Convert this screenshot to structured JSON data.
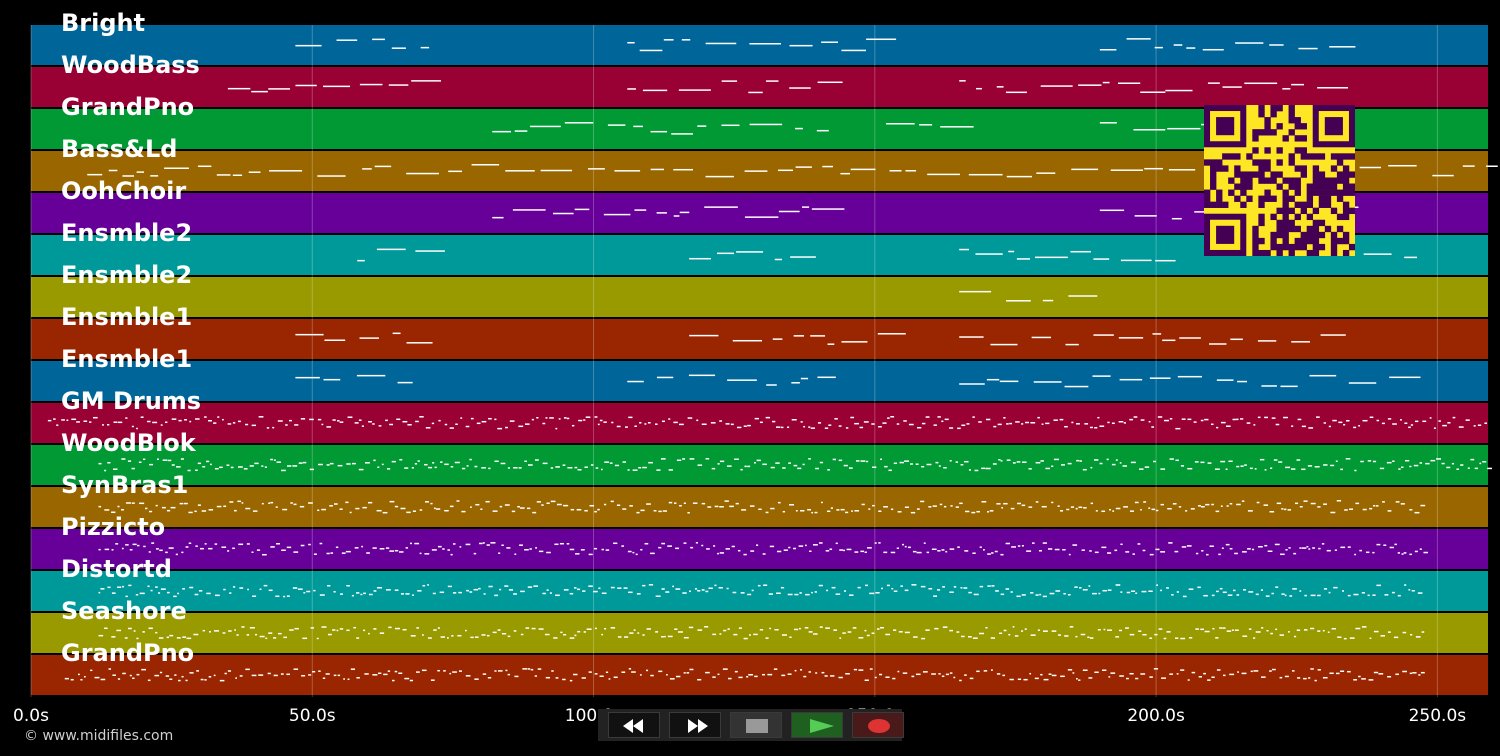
{
  "tracks": [
    {
      "name": "Bright",
      "color": "#006699"
    },
    {
      "name": "WoodBass",
      "color": "#990033"
    },
    {
      "name": "GrandPno",
      "color": "#009933"
    },
    {
      "name": "Bass&Ld",
      "color": "#996600"
    },
    {
      "name": "OohChoir",
      "color": "#660099"
    },
    {
      "name": "Ensmble2",
      "color": "#009999"
    },
    {
      "name": "Ensmble2",
      "color": "#999900"
    },
    {
      "name": "Ensmble1",
      "color": "#992600"
    },
    {
      "name": "Ensmble1",
      "color": "#006699"
    },
    {
      "name": "GM Drums",
      "color": "#990033"
    },
    {
      "name": "WoodBlok",
      "color": "#009933"
    },
    {
      "name": "SynBras1",
      "color": "#996600"
    },
    {
      "name": "Pizzicto",
      "color": "#660099"
    },
    {
      "name": "Distortd",
      "color": "#009999"
    },
    {
      "name": "Seashore",
      "color": "#999900"
    },
    {
      "name": "GrandPno",
      "color": "#992600"
    }
  ],
  "time_axis": {
    "ticks": [
      {
        "value": 0,
        "label": "0.0s"
      },
      {
        "value": 50,
        "label": "50.0s"
      },
      {
        "value": 100,
        "label": "100.0s"
      },
      {
        "value": 150,
        "label": "150.0s"
      },
      {
        "value": 200,
        "label": "200.0s"
      },
      {
        "value": 250,
        "label": "250.0s"
      }
    ],
    "max_seconds": 259
  },
  "copyright": "© www.midifiles.com",
  "transport": {
    "rewind_icon": "rewind-icon",
    "fast_forward_icon": "fast-forward-icon",
    "stop_icon": "stop-icon",
    "play_icon": "play-icon",
    "record_icon": "record-icon",
    "play_color": "#55cc55",
    "record_color": "#dd3333"
  },
  "qr_colors": {
    "background": "#fde725",
    "foreground": "#440154"
  }
}
